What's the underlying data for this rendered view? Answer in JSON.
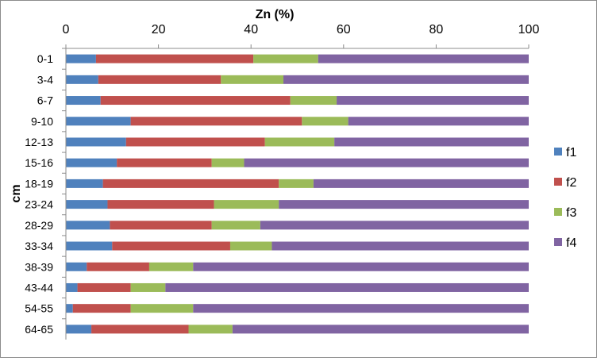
{
  "chart_data": {
    "type": "bar",
    "orientation": "horizontal",
    "stacked": true,
    "title": "",
    "xlabel": "Zn (%)",
    "ylabel": "cm",
    "xlim": [
      0,
      100
    ],
    "xticks": [
      0,
      20,
      40,
      60,
      80,
      100
    ],
    "x_axis_position": "top",
    "grid": false,
    "legend_position": "right",
    "categories": [
      "0-1",
      "3-4",
      "6-7",
      "9-10",
      "12-13",
      "15-16",
      "18-19",
      "23-24",
      "28-29",
      "33-34",
      "38-39",
      "43-44",
      "54-55",
      "64-65"
    ],
    "series": [
      {
        "name": "f1",
        "color": "#4F81BD",
        "values": [
          6.5,
          7,
          7.5,
          14,
          13,
          11,
          8,
          9,
          9.5,
          10,
          4.5,
          2.5,
          1.5,
          5.5
        ]
      },
      {
        "name": "f2",
        "color": "#C0504D",
        "values": [
          34,
          26.5,
          41,
          37,
          30,
          20.5,
          38,
          23,
          22,
          25.5,
          13.5,
          11.5,
          12.5,
          21
        ]
      },
      {
        "name": "f3",
        "color": "#9BBB59",
        "values": [
          14,
          13.5,
          10,
          10,
          15,
          7,
          7.5,
          14,
          10.5,
          9,
          9.5,
          7.5,
          13.5,
          9.5
        ]
      },
      {
        "name": "f4",
        "color": "#8064A2",
        "values": [
          45.5,
          53,
          41.5,
          39,
          42,
          61.5,
          46.5,
          54,
          58,
          55.5,
          72.5,
          78.5,
          72.5,
          64
        ]
      }
    ]
  }
}
